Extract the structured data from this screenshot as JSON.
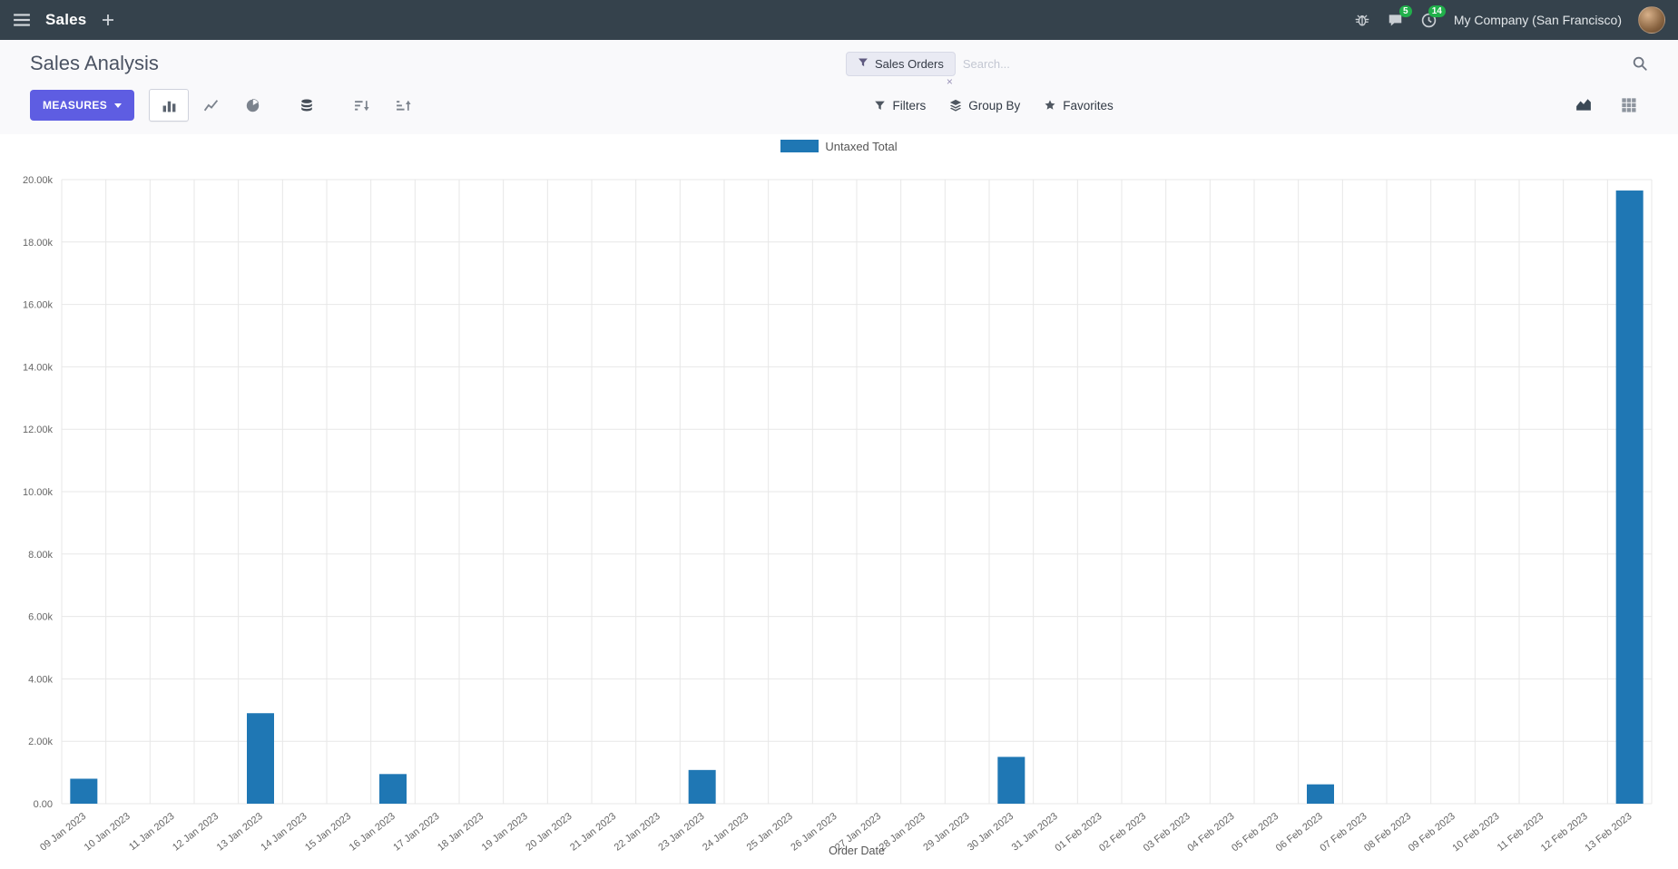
{
  "navbar": {
    "app_name": "Sales",
    "company": "My Company (San Francisco)",
    "chat_badge": "5",
    "activity_badge": "14"
  },
  "control": {
    "title": "Sales Analysis",
    "measures_label": "MEASURES",
    "facet_label": "Sales Orders",
    "facet_remove": "×",
    "search_placeholder": "Search...",
    "filters_label": "Filters",
    "group_by_label": "Group By",
    "favorites_label": "Favorites"
  },
  "chart_data": {
    "type": "bar",
    "title": "",
    "xlabel": "Order Date",
    "ylabel": "",
    "ylim": [
      0,
      20000
    ],
    "ytick_step": 2000,
    "legend_position": "top",
    "grid": true,
    "categories": [
      "09 Jan 2023",
      "10 Jan 2023",
      "11 Jan 2023",
      "12 Jan 2023",
      "13 Jan 2023",
      "14 Jan 2023",
      "15 Jan 2023",
      "16 Jan 2023",
      "17 Jan 2023",
      "18 Jan 2023",
      "19 Jan 2023",
      "20 Jan 2023",
      "21 Jan 2023",
      "22 Jan 2023",
      "23 Jan 2023",
      "24 Jan 2023",
      "25 Jan 2023",
      "26 Jan 2023",
      "27 Jan 2023",
      "28 Jan 2023",
      "29 Jan 2023",
      "30 Jan 2023",
      "31 Jan 2023",
      "01 Feb 2023",
      "02 Feb 2023",
      "03 Feb 2023",
      "04 Feb 2023",
      "05 Feb 2023",
      "06 Feb 2023",
      "07 Feb 2023",
      "08 Feb 2023",
      "09 Feb 2023",
      "10 Feb 2023",
      "11 Feb 2023",
      "12 Feb 2023",
      "13 Feb 2023"
    ],
    "series": [
      {
        "name": "Untaxed Total",
        "color": "#1f77b4",
        "values": [
          800,
          0,
          0,
          0,
          2900,
          0,
          0,
          950,
          0,
          0,
          0,
          0,
          0,
          0,
          1080,
          0,
          0,
          0,
          0,
          0,
          0,
          1500,
          0,
          0,
          0,
          0,
          0,
          0,
          620,
          0,
          0,
          0,
          0,
          0,
          0,
          19650
        ]
      }
    ]
  }
}
